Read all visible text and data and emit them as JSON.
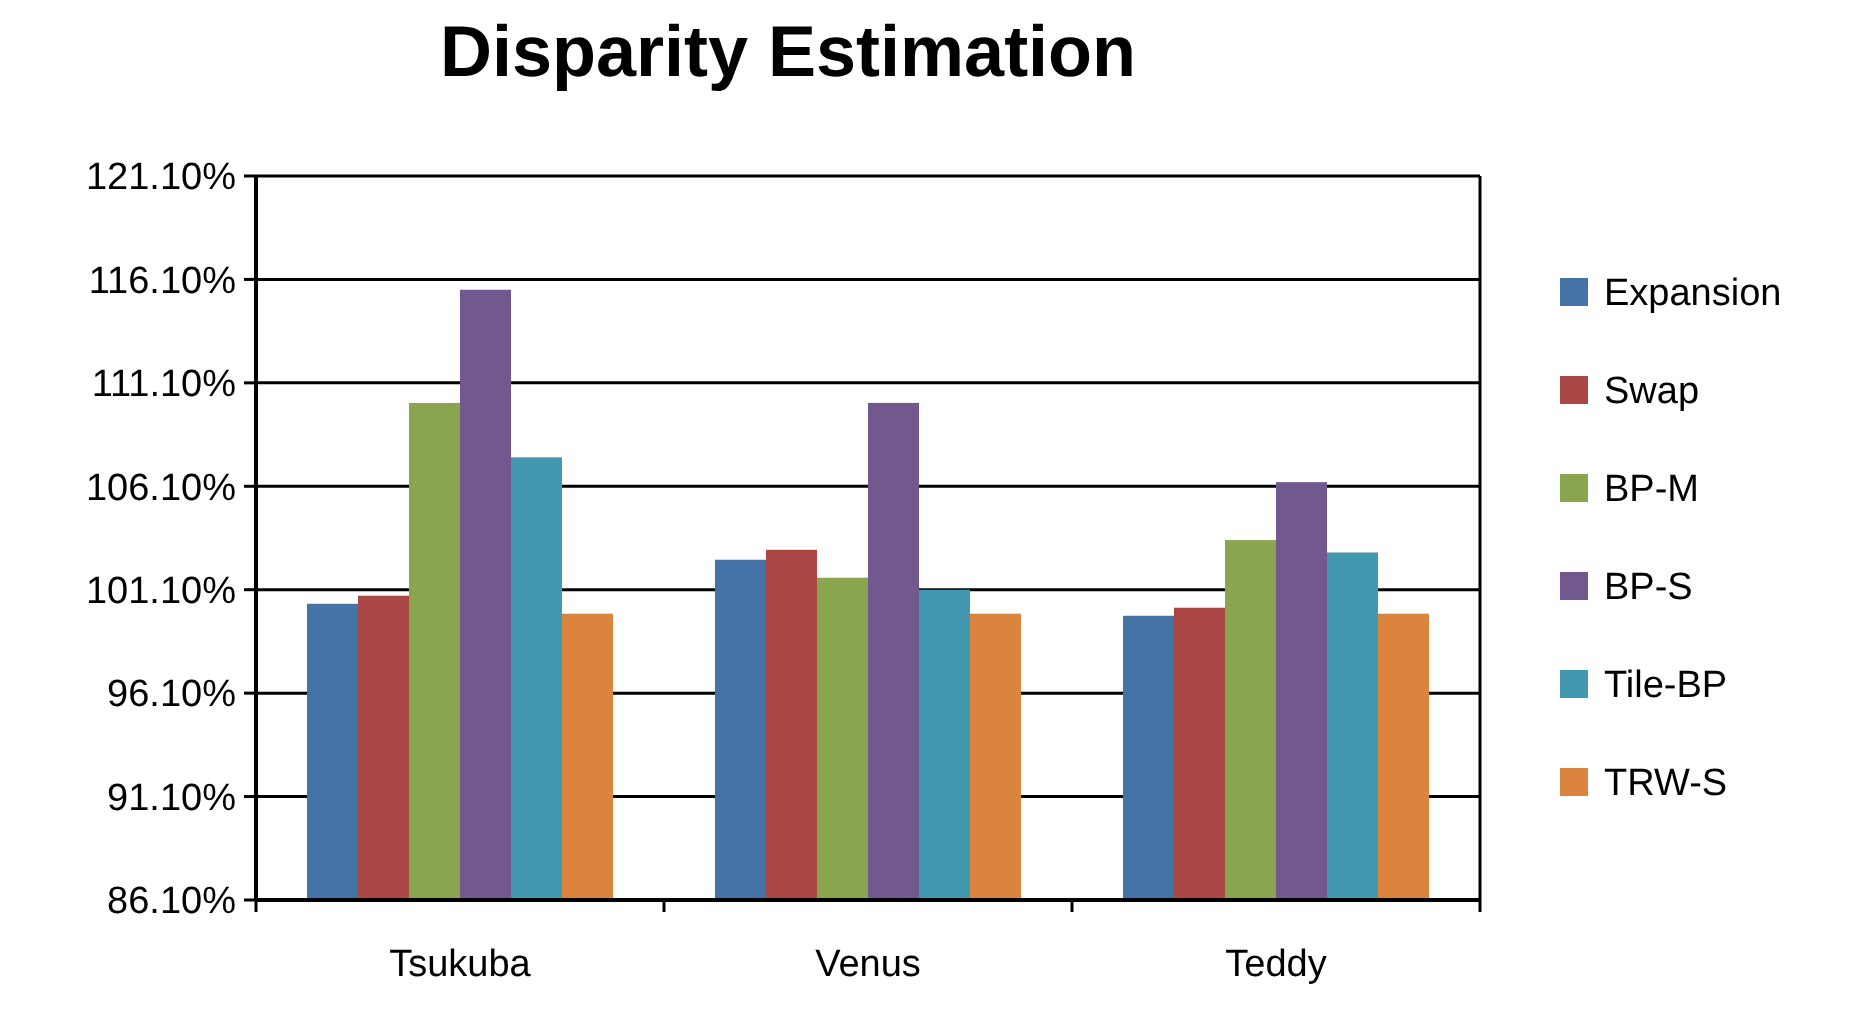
{
  "chart_data": {
    "type": "bar",
    "title": "Disparity Estimation",
    "categories": [
      "Tsukuba",
      "Venus",
      "Teddy"
    ],
    "series": [
      {
        "name": "Expansion",
        "color": "#4572a7",
        "values": [
          100.42,
          102.55,
          99.84
        ]
      },
      {
        "name": "Swap",
        "color": "#aa4643",
        "values": [
          100.81,
          103.03,
          100.23
        ]
      },
      {
        "name": "BP-M",
        "color": "#89a54e",
        "values": [
          110.13,
          101.68,
          103.5
        ]
      },
      {
        "name": "BP-S",
        "color": "#71588f",
        "values": [
          115.6,
          110.13,
          106.3
        ]
      },
      {
        "name": "Tile-BP",
        "color": "#4198af",
        "values": [
          107.5,
          101.1,
          102.9
        ]
      },
      {
        "name": "TRW-S",
        "color": "#db843d",
        "values": [
          99.94,
          99.94,
          99.94
        ]
      }
    ],
    "ylim": [
      86.1,
      121.1
    ],
    "yticks": [
      {
        "value": 86.1,
        "label": "86.10%"
      },
      {
        "value": 91.1,
        "label": "91.10%"
      },
      {
        "value": 96.1,
        "label": "96.10%"
      },
      {
        "value": 101.1,
        "label": "101.10%"
      },
      {
        "value": 106.1,
        "label": "106.10%"
      },
      {
        "value": 111.1,
        "label": "111.10%"
      },
      {
        "value": 116.1,
        "label": "116.10%"
      },
      {
        "value": 121.1,
        "label": "121.10%"
      }
    ],
    "grid": "y",
    "legend": "right"
  }
}
